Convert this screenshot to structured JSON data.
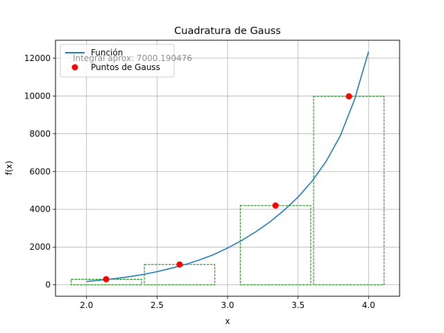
{
  "chart_data": {
    "type": "line",
    "title": "Cuadratura de Gauss",
    "xlabel": "x",
    "ylabel": "f(x)",
    "xlim": [
      1.78,
      4.22
    ],
    "ylim": [
      -600,
      12950
    ],
    "xticks": [
      2.0,
      2.5,
      3.0,
      3.5,
      4.0
    ],
    "xtick_labels": [
      "2.0",
      "2.5",
      "3.0",
      "3.5",
      "4.0"
    ],
    "yticks": [
      0,
      2000,
      4000,
      6000,
      8000,
      10000,
      12000
    ],
    "ytick_labels": [
      "0",
      "2000",
      "4000",
      "6000",
      "8000",
      "10000",
      "12000"
    ],
    "grid": true,
    "legend": {
      "position": "top-left",
      "entries": [
        "Función",
        "Puntos de Gauss"
      ]
    },
    "annotation": "Integral aprox: 7000.190476",
    "series": [
      {
        "name": "Función",
        "kind": "line",
        "color": "#1f77b4",
        "x": [
          2.0,
          2.1,
          2.2,
          2.3,
          2.4,
          2.5,
          2.6,
          2.7,
          2.8,
          2.9,
          3.0,
          3.1,
          3.2,
          3.3,
          3.4,
          3.5,
          3.6,
          3.7,
          3.8,
          3.9,
          4.0
        ],
        "y": [
          180,
          250,
          330,
          430,
          550,
          700,
          880,
          1080,
          1320,
          1600,
          1950,
          2350,
          2810,
          3330,
          3950,
          4650,
          5500,
          6550,
          7900,
          9800,
          12350
        ]
      },
      {
        "name": "Puntos de Gauss",
        "kind": "scatter",
        "color": "#ff0000",
        "x": [
          2.139,
          2.66,
          3.34,
          3.861
        ],
        "y": [
          300,
          1080,
          4200,
          9980
        ]
      }
    ],
    "rectangles": {
      "color": "#008000",
      "style": "dashed",
      "bars": [
        {
          "x0": 1.89,
          "x1": 2.39,
          "height": 300
        },
        {
          "x0": 2.41,
          "x1": 2.91,
          "height": 1080
        },
        {
          "x0": 3.09,
          "x1": 3.59,
          "height": 4200
        },
        {
          "x0": 3.61,
          "x1": 4.11,
          "height": 9980
        }
      ]
    }
  }
}
